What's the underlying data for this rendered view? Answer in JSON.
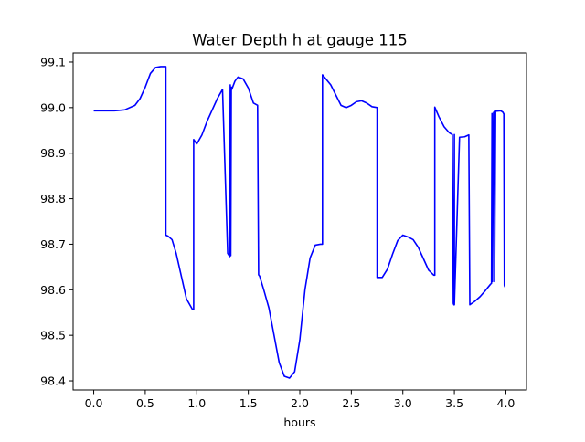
{
  "chart_data": {
    "type": "line",
    "title": "Water Depth h at gauge 115",
    "xlabel": "hours",
    "ylabel": "",
    "xlim": [
      -0.2,
      4.2
    ],
    "ylim": [
      98.38,
      99.12
    ],
    "xticks": [
      0.0,
      0.5,
      1.0,
      1.5,
      2.0,
      2.5,
      3.0,
      3.5,
      4.0
    ],
    "xtick_labels": [
      "0.0",
      "0.5",
      "1.0",
      "1.5",
      "2.0",
      "2.5",
      "3.0",
      "3.5",
      "4.0"
    ],
    "yticks": [
      98.4,
      98.5,
      98.6,
      98.7,
      98.8,
      98.9,
      99.0,
      99.1
    ],
    "ytick_labels": [
      "98.4",
      "98.5",
      "98.6",
      "98.7",
      "98.8",
      "98.9",
      "99.0",
      "99.1"
    ],
    "grid": false,
    "legend": "none",
    "series": [
      {
        "color": "#0000ff",
        "x": [
          0.0,
          0.2,
          0.3,
          0.4,
          0.45,
          0.5,
          0.55,
          0.6,
          0.65,
          0.7,
          0.7,
          0.72,
          0.76,
          0.8,
          0.85,
          0.9,
          0.95,
          0.96,
          0.97,
          0.97,
          1.0,
          1.05,
          1.1,
          1.15,
          1.2,
          1.25,
          1.3,
          1.32,
          1.325,
          1.33,
          1.335,
          1.34,
          1.34,
          1.37,
          1.4,
          1.45,
          1.5,
          1.55,
          1.59,
          1.6,
          1.61,
          1.65,
          1.7,
          1.75,
          1.8,
          1.85,
          1.9,
          1.95,
          2.0,
          2.05,
          2.1,
          2.15,
          2.2,
          2.22,
          2.22,
          2.3,
          2.4,
          2.45,
          2.5,
          2.55,
          2.6,
          2.65,
          2.7,
          2.75,
          2.75,
          2.8,
          2.85,
          2.9,
          2.95,
          3.0,
          3.05,
          3.1,
          3.15,
          3.2,
          3.25,
          3.3,
          3.31,
          3.31,
          3.35,
          3.4,
          3.45,
          3.48,
          3.49,
          3.495,
          3.5,
          3.5,
          3.55,
          3.6,
          3.64,
          3.64,
          3.65,
          3.7,
          3.75,
          3.8,
          3.85,
          3.86,
          3.865,
          3.87,
          3.87,
          3.88,
          3.89,
          3.89,
          3.9,
          3.95,
          3.97,
          3.98,
          3.985,
          3.99
        ],
        "y": [
          98.993,
          98.993,
          98.995,
          99.005,
          99.02,
          99.045,
          99.075,
          99.088,
          99.09,
          99.09,
          98.72,
          98.718,
          98.71,
          98.68,
          98.63,
          98.58,
          98.56,
          98.556,
          98.556,
          98.93,
          98.92,
          98.94,
          98.97,
          98.995,
          99.02,
          99.04,
          98.68,
          98.673,
          99.05,
          98.675,
          99.045,
          99.04,
          99.04,
          99.058,
          99.067,
          99.063,
          99.043,
          99.01,
          99.005,
          98.633,
          98.63,
          98.6,
          98.56,
          98.5,
          98.44,
          98.41,
          98.406,
          98.42,
          98.49,
          98.6,
          98.67,
          98.698,
          98.7,
          98.7,
          99.072,
          99.05,
          99.005,
          99.0,
          99.005,
          99.013,
          99.015,
          99.01,
          99.002,
          99.0,
          98.627,
          98.627,
          98.645,
          98.678,
          98.708,
          98.72,
          98.716,
          98.71,
          98.693,
          98.668,
          98.643,
          98.632,
          98.632,
          99.001,
          98.98,
          98.958,
          98.945,
          98.941,
          98.57,
          98.567,
          98.941,
          98.567,
          98.935,
          98.936,
          98.94,
          98.94,
          98.567,
          98.575,
          98.585,
          98.598,
          98.612,
          98.614,
          98.987,
          98.618,
          98.618,
          98.989,
          98.992,
          98.618,
          98.992,
          98.993,
          98.99,
          98.986,
          98.61,
          98.606
        ]
      }
    ]
  }
}
